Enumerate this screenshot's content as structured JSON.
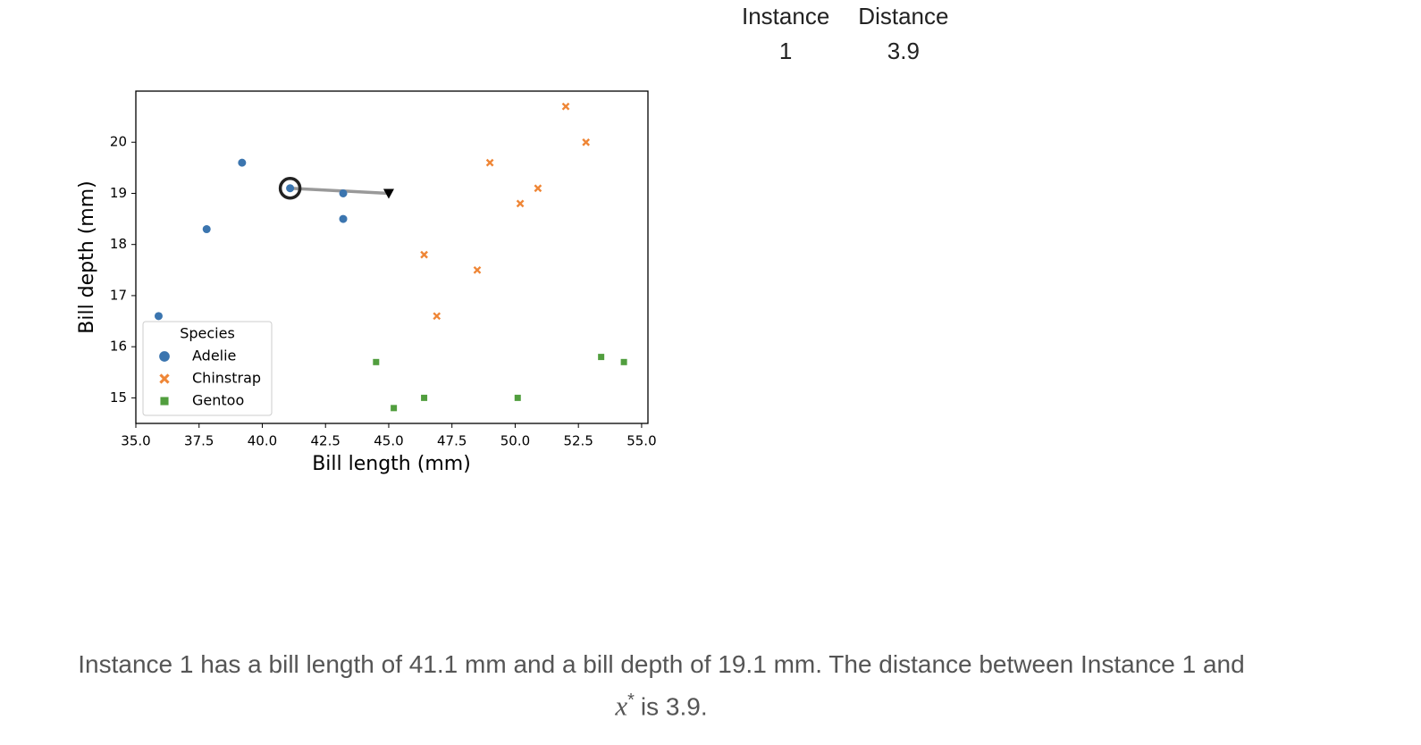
{
  "chart_data": {
    "type": "scatter",
    "x_label": "Bill length (mm)",
    "y_label": "Bill depth (mm)",
    "xlim": [
      35.0,
      55.25
    ],
    "ylim": [
      14.5,
      21.0
    ],
    "xticks": [
      {
        "value": 35,
        "label": "35.0"
      },
      37.5,
      {
        "value": 40,
        "label": "40.0"
      },
      42.5,
      {
        "value": 45,
        "label": "45.0"
      },
      47.5,
      {
        "value": 50,
        "label": "50.0"
      },
      52.5,
      {
        "value": 55,
        "label": "55.0"
      }
    ],
    "yticks": [
      15,
      16,
      17,
      18,
      19,
      20
    ],
    "legend_title": "Species",
    "legend_position": "lower left",
    "series": [
      {
        "name": "Adelie",
        "color": "#3b75af",
        "marker": "circle",
        "x": [
          35.9,
          37.8,
          39.2,
          41.1,
          43.2,
          43.2
        ],
        "values": [
          16.6,
          18.3,
          19.6,
          19.1,
          19.0,
          18.5
        ]
      },
      {
        "name": "Chinstrap",
        "color": "#ef8636",
        "marker": "cross",
        "x": [
          52.0,
          52.8,
          49.0,
          50.9,
          50.2,
          46.4,
          48.5,
          46.9
        ],
        "values": [
          20.7,
          20.0,
          19.6,
          19.1,
          18.8,
          17.8,
          17.5,
          16.6
        ]
      },
      {
        "name": "Gentoo",
        "color": "#519e3e",
        "marker": "square",
        "x": [
          44.5,
          45.2,
          46.4,
          50.1,
          53.4,
          54.3
        ],
        "values": [
          15.7,
          14.8,
          15.0,
          15.0,
          15.8,
          15.7
        ]
      }
    ],
    "highlight": {
      "series": 0,
      "index": 3
    },
    "reference_point": {
      "x": 45.0,
      "y": 19.0,
      "color": "#000000"
    }
  },
  "table": {
    "headers": [
      "Instance",
      "Distance"
    ],
    "rows": [
      [
        1,
        3.9
      ]
    ]
  },
  "caption": {
    "before": "Instance 1 has a bill length of 41.1 mm and a bill depth of 19.1 mm. The distance between Instance 1 and",
    "math_symbol": "x",
    "math_sup": "*",
    "after": "is 3.9."
  }
}
